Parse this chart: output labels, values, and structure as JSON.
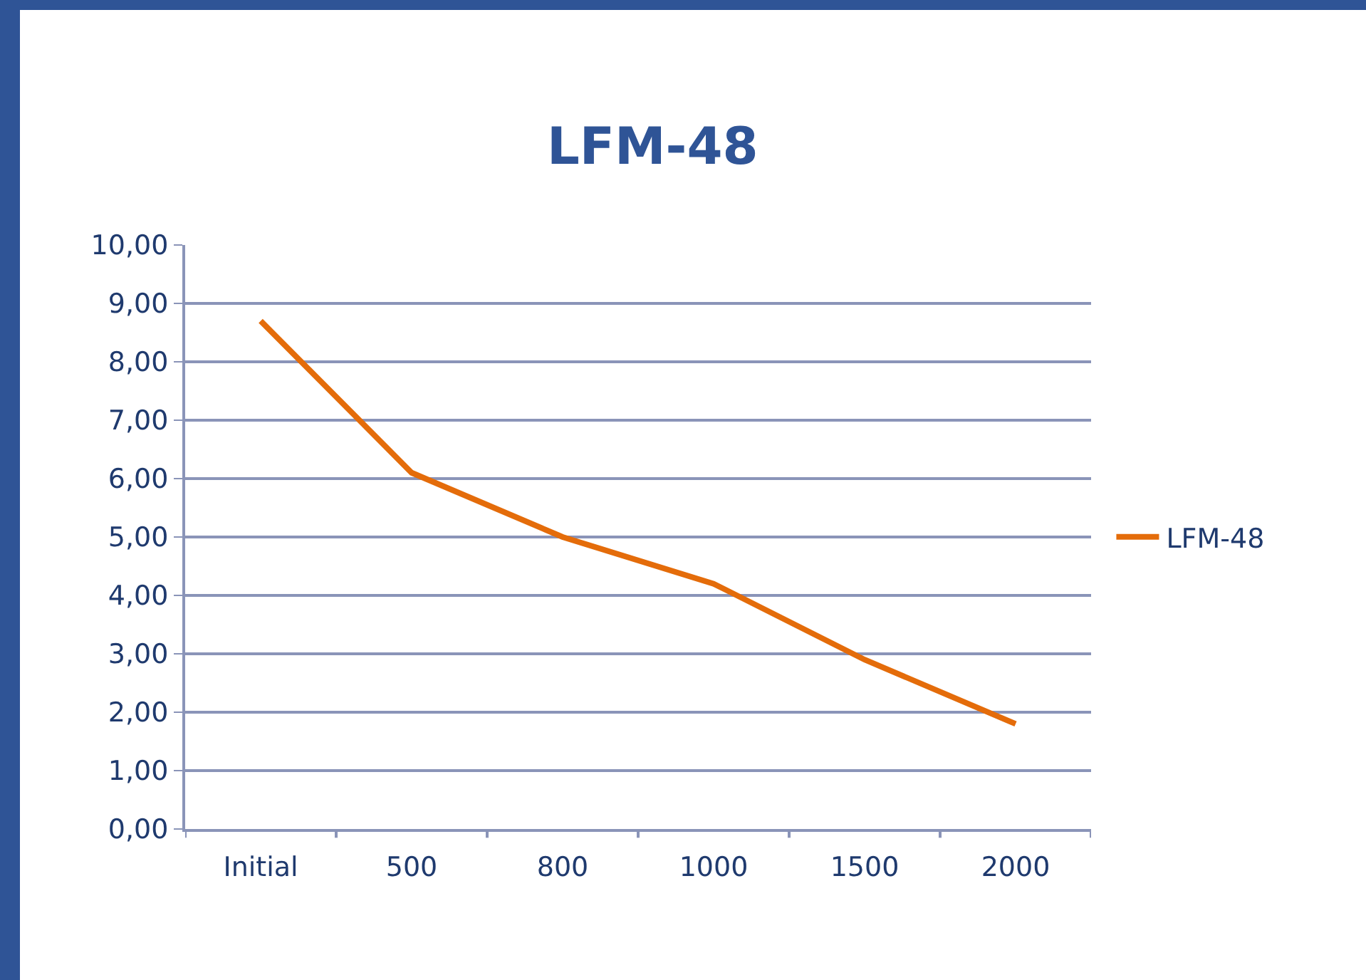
{
  "chart_data": {
    "type": "line",
    "title": "LFM-48",
    "categories": [
      "Initial",
      "500",
      "800",
      "1000",
      "1500",
      "2000"
    ],
    "series": [
      {
        "name": "LFM-48",
        "color": "#e46c0a",
        "values": [
          8.7,
          6.1,
          5.0,
          4.2,
          2.9,
          1.8
        ]
      }
    ],
    "ylim": [
      0,
      10
    ],
    "yticks": [
      {
        "value": 0,
        "label": "0,00"
      },
      {
        "value": 1,
        "label": "1,00"
      },
      {
        "value": 2,
        "label": "2,00"
      },
      {
        "value": 3,
        "label": "3,00"
      },
      {
        "value": 4,
        "label": "4,00"
      },
      {
        "value": 5,
        "label": "5,00"
      },
      {
        "value": 6,
        "label": "6,00"
      },
      {
        "value": 7,
        "label": "7,00"
      },
      {
        "value": 8,
        "label": "8,00"
      },
      {
        "value": 9,
        "label": "9,00"
      },
      {
        "value": 10,
        "label": "10,00"
      }
    ],
    "grid": "y",
    "legend": "right",
    "marker": "none",
    "line_style": "solid"
  }
}
